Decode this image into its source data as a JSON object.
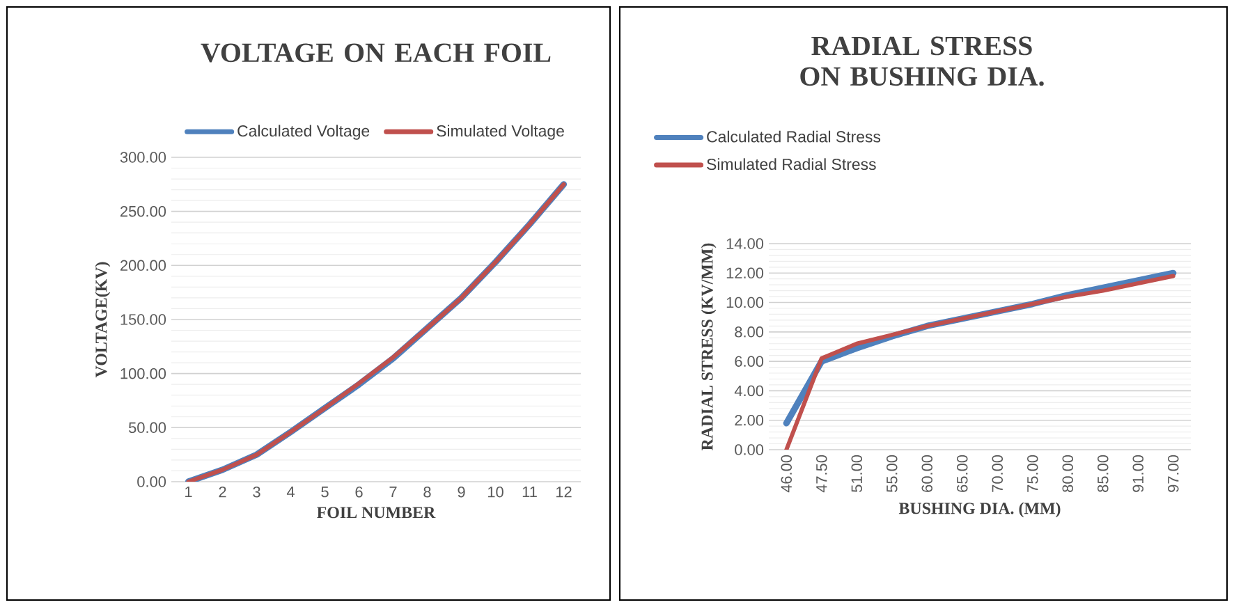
{
  "chart_data": [
    {
      "type": "line",
      "title": "VOLTAGE ON EACH FOIL",
      "xlabel": "FOIL NUMBER",
      "ylabel": "VOLTAGE(KV)",
      "categories": [
        "1",
        "2",
        "3",
        "4",
        "5",
        "6",
        "7",
        "8",
        "9",
        "10",
        "11",
        "12"
      ],
      "series": [
        {
          "name": "Calculated Voltage",
          "color": "#4f81bd",
          "values": [
            0,
            11,
            25,
            46,
            68,
            90,
            114,
            142,
            170,
            203,
            238,
            275
          ]
        },
        {
          "name": "Simulated Voltage",
          "color": "#c0504d",
          "values": [
            0,
            11,
            25,
            46,
            68,
            91,
            115,
            142,
            170,
            203,
            238,
            275
          ]
        }
      ],
      "ylim": [
        0,
        300
      ],
      "yticks": [
        {
          "value": 0,
          "label": "0.00"
        },
        {
          "value": 50,
          "label": "50.00"
        },
        {
          "value": 100,
          "label": "100.00"
        },
        {
          "value": 150,
          "label": "150.00"
        },
        {
          "value": 200,
          "label": "200.00"
        },
        {
          "value": 250,
          "label": "250.00"
        },
        {
          "value": 300,
          "label": "300.00"
        }
      ],
      "grid": "y",
      "legend": "top"
    },
    {
      "type": "line",
      "title": "RADIAL STRESS ON BUSHING DIA.",
      "xlabel": "BUSHING DIA. (MM)",
      "ylabel": "RADIAL STRESS (KV/MM)",
      "categories": [
        "46.00",
        "47.50",
        "51.00",
        "55.00",
        "60.00",
        "65.00",
        "70.00",
        "75.00",
        "80.00",
        "85.00",
        "91.00",
        "97.00"
      ],
      "series": [
        {
          "name": "Calculated Radial Stress",
          "color": "#4f81bd",
          "values": [
            1.8,
            6.0,
            6.9,
            7.7,
            8.4,
            8.9,
            9.4,
            9.9,
            10.5,
            11.0,
            11.5,
            12.0
          ]
        },
        {
          "name": "Simulated Radial Stress",
          "color": "#c0504d",
          "values": [
            0,
            6.2,
            7.2,
            7.8,
            8.4,
            8.9,
            9.4,
            9.9,
            10.4,
            10.8,
            11.3,
            11.8
          ]
        }
      ],
      "ylim": [
        0,
        14
      ],
      "yticks": [
        {
          "value": 0,
          "label": "0.00"
        },
        {
          "value": 2,
          "label": "2.00"
        },
        {
          "value": 4,
          "label": "4.00"
        },
        {
          "value": 6,
          "label": "6.00"
        },
        {
          "value": 8,
          "label": "8.00"
        },
        {
          "value": 10,
          "label": "10.00"
        },
        {
          "value": 12,
          "label": "12.00"
        },
        {
          "value": 14,
          "label": "14.00"
        }
      ],
      "grid": "y",
      "legend": "top"
    }
  ]
}
